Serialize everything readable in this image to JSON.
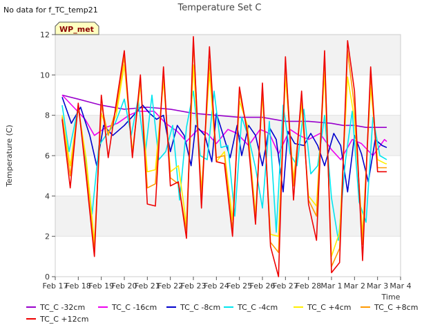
{
  "chart_data": {
    "type": "line",
    "title": "Temperature Set C",
    "no_data_note": "No data for f_TC_temp21",
    "badge": "WP_met",
    "xlabel": "Time",
    "ylabel": "Temperature (C)",
    "ylim": [
      0,
      12
    ],
    "yticks": [
      0,
      2,
      4,
      6,
      8,
      10,
      12
    ],
    "xlim": [
      0,
      15
    ],
    "xticks": [
      {
        "x": 0,
        "label": "Feb 17"
      },
      {
        "x": 1,
        "label": "Feb 18"
      },
      {
        "x": 2,
        "label": "Feb 19"
      },
      {
        "x": 3,
        "label": "Feb 20"
      },
      {
        "x": 4,
        "label": "Feb 21"
      },
      {
        "x": 5,
        "label": "Feb 22"
      },
      {
        "x": 6,
        "label": "Feb 23"
      },
      {
        "x": 7,
        "label": "Feb 24"
      },
      {
        "x": 8,
        "label": "Feb 25"
      },
      {
        "x": 9,
        "label": "Feb 26"
      },
      {
        "x": 10,
        "label": "Feb 27"
      },
      {
        "x": 11,
        "label": "Feb 28"
      },
      {
        "x": 12,
        "label": "Mar 1"
      },
      {
        "x": 13,
        "label": "Mar 2"
      },
      {
        "x": 14,
        "label": "Mar 3"
      },
      {
        "x": 15,
        "label": "Mar 4"
      }
    ],
    "grid": "horizontal bands",
    "legend_position": "bottom",
    "series": [
      {
        "name": "TC_C -32cm",
        "color": "#9900cc",
        "x": [
          0.3,
          1,
          2,
          3,
          4,
          5,
          6,
          7,
          8,
          9,
          10,
          11,
          12,
          12.5,
          13,
          13.5,
          14,
          14.4
        ],
        "y": [
          9.0,
          8.8,
          8.5,
          8.3,
          8.4,
          8.3,
          8.1,
          8.0,
          7.9,
          7.9,
          7.7,
          7.7,
          7.6,
          7.5,
          7.5,
          7.4,
          7.4,
          7.4
        ]
      },
      {
        "name": "TC_C -16cm",
        "color": "#ee00ee",
        "x": [
          0.3,
          0.8,
          1.3,
          1.7,
          2.2,
          2.7,
          3.2,
          3.6,
          4.3,
          4.8,
          5.3,
          5.7,
          6.2,
          6.6,
          7.0,
          7.5,
          7.9,
          8.4,
          8.9,
          9.3,
          9.7,
          10.2,
          10.6,
          11.0,
          11.5,
          12.0,
          12.4,
          12.9,
          13.3,
          13.8,
          14.3,
          14.4
        ],
        "y": [
          9.0,
          8.4,
          7.8,
          7.0,
          7.4,
          7.6,
          8.0,
          8.2,
          8.2,
          7.6,
          7.2,
          6.7,
          7.3,
          7.1,
          6.6,
          7.3,
          7.1,
          6.5,
          7.3,
          7.1,
          6.1,
          7.3,
          7.0,
          6.8,
          7.1,
          6.3,
          5.8,
          6.8,
          6.6,
          6.0,
          6.8,
          6.7
        ]
      },
      {
        "name": "TC_C -8cm",
        "color": "#0000cc",
        "x": [
          0.3,
          0.7,
          1.1,
          1.5,
          1.8,
          2.1,
          2.5,
          3.0,
          3.4,
          3.8,
          4.1,
          4.4,
          4.7,
          5.0,
          5.3,
          5.6,
          5.9,
          6.1,
          6.5,
          6.8,
          7.0,
          7.3,
          7.6,
          7.9,
          8.1,
          8.4,
          8.7,
          9.0,
          9.3,
          9.6,
          9.9,
          10.1,
          10.4,
          10.8,
          11.1,
          11.4,
          11.7,
          12.1,
          12.4,
          12.7,
          13.0,
          13.3,
          13.6,
          13.9,
          14.2,
          14.4
        ],
        "y": [
          8.9,
          7.6,
          8.4,
          7.0,
          5.5,
          7.5,
          7.0,
          7.5,
          8.0,
          8.5,
          8.1,
          7.8,
          8.0,
          6.2,
          7.5,
          7.0,
          5.5,
          7.5,
          7.0,
          5.7,
          8.1,
          7.0,
          5.9,
          7.5,
          6.0,
          7.5,
          7.0,
          5.5,
          7.4,
          6.8,
          4.2,
          7.2,
          6.6,
          6.5,
          7.1,
          6.5,
          5.5,
          7.1,
          6.5,
          4.2,
          7.0,
          6.1,
          4.7,
          6.8,
          6.5,
          6.4
        ]
      },
      {
        "name": "TC_C -4cm",
        "color": "#00e5ee",
        "x": [
          0.3,
          0.6,
          1.0,
          1.3,
          1.6,
          1.9,
          2.2,
          2.6,
          3.0,
          3.3,
          3.6,
          3.9,
          4.2,
          4.5,
          4.8,
          5.1,
          5.4,
          5.7,
          6.0,
          6.3,
          6.6,
          6.9,
          7.2,
          7.5,
          7.8,
          8.1,
          8.4,
          8.7,
          9.0,
          9.3,
          9.6,
          9.9,
          10.2,
          10.5,
          10.8,
          11.1,
          11.4,
          11.7,
          12.0,
          12.3,
          12.6,
          12.9,
          13.2,
          13.5,
          13.8,
          14.1,
          14.4
        ],
        "y": [
          8.5,
          6.2,
          8.4,
          6.0,
          3.1,
          6.5,
          7.0,
          7.6,
          8.8,
          7.0,
          8.8,
          6.0,
          9.0,
          5.8,
          6.2,
          7.5,
          3.8,
          7.4,
          9.2,
          6.0,
          5.8,
          9.2,
          6.4,
          6.5,
          3.0,
          7.9,
          6.9,
          5.4,
          3.4,
          7.7,
          2.2,
          8.5,
          6.1,
          5.5,
          8.3,
          5.1,
          5.5,
          8.0,
          3.9,
          1.8,
          5.7,
          8.2,
          3.7,
          2.7,
          7.9,
          6.0,
          5.8
        ]
      },
      {
        "name": "TC_C +4cm",
        "color": "#ffee00",
        "x": [
          0.3,
          0.65,
          1.0,
          1.35,
          1.7,
          2.0,
          2.3,
          2.65,
          3.0,
          3.35,
          3.7,
          4.0,
          4.35,
          4.7,
          5.0,
          5.35,
          5.7,
          6.0,
          6.35,
          6.7,
          7.0,
          7.35,
          7.7,
          8.0,
          8.35,
          8.7,
          9.0,
          9.35,
          9.7,
          10.0,
          10.35,
          10.7,
          11.0,
          11.35,
          11.7,
          12.0,
          12.35,
          12.7,
          13.0,
          13.35,
          13.7,
          14.0,
          14.35,
          14.4
        ],
        "y": [
          8.0,
          5.5,
          8.4,
          5.8,
          1.7,
          8.1,
          7.1,
          8.0,
          10.5,
          6.2,
          9.5,
          5.2,
          5.3,
          9.7,
          5.2,
          5.5,
          2.6,
          10.5,
          4.3,
          10.1,
          5.7,
          6.2,
          2.8,
          8.7,
          7.5,
          3.1,
          9.0,
          2.1,
          2.0,
          9.9,
          4.8,
          8.5,
          4.0,
          3.5,
          10.1,
          1.0,
          2.2,
          9.9,
          7.8,
          2.1,
          9.4,
          5.8,
          5.6,
          5.6
        ]
      },
      {
        "name": "TC_C +8cm",
        "color": "#ff9900",
        "x": [
          0.3,
          0.65,
          1.0,
          1.35,
          1.7,
          2.0,
          2.3,
          2.65,
          3.0,
          3.35,
          3.7,
          4.0,
          4.35,
          4.7,
          5.0,
          5.35,
          5.7,
          6.0,
          6.35,
          6.7,
          7.0,
          7.35,
          7.7,
          8.0,
          8.35,
          8.7,
          9.0,
          9.35,
          9.7,
          10.0,
          10.35,
          10.7,
          11.0,
          11.35,
          11.7,
          12.0,
          12.35,
          12.7,
          13.0,
          13.35,
          13.7,
          14.0,
          14.35,
          14.4
        ],
        "y": [
          7.9,
          5.0,
          8.5,
          5.2,
          1.3,
          8.5,
          7.0,
          8.3,
          10.9,
          6.0,
          9.8,
          4.4,
          4.6,
          10.1,
          4.9,
          4.6,
          2.3,
          11.6,
          4.0,
          10.7,
          5.9,
          6.0,
          2.3,
          9.1,
          7.3,
          2.8,
          9.3,
          1.7,
          1.2,
          10.6,
          4.5,
          8.9,
          3.8,
          3.0,
          10.9,
          0.5,
          1.4,
          11.2,
          8.4,
          1.6,
          10.0,
          5.4,
          5.4,
          5.4
        ]
      },
      {
        "name": "TC_C +12cm",
        "color": "#ee0000",
        "x": [
          0.3,
          0.65,
          1.0,
          1.35,
          1.7,
          2.0,
          2.3,
          2.65,
          3.0,
          3.35,
          3.7,
          4.0,
          4.35,
          4.7,
          5.0,
          5.35,
          5.7,
          6.0,
          6.35,
          6.7,
          7.0,
          7.35,
          7.7,
          8.0,
          8.35,
          8.7,
          9.0,
          9.35,
          9.7,
          10.0,
          10.35,
          10.7,
          11.0,
          11.35,
          11.7,
          12.0,
          12.35,
          12.7,
          13.0,
          13.35,
          13.7,
          14.0,
          14.35,
          14.4
        ],
        "y": [
          7.8,
          4.4,
          8.6,
          4.9,
          1.0,
          9.0,
          5.9,
          8.6,
          11.2,
          5.9,
          10.0,
          3.6,
          3.5,
          10.4,
          4.5,
          4.7,
          1.9,
          11.9,
          3.4,
          11.4,
          5.7,
          5.6,
          2.0,
          9.4,
          7.1,
          2.6,
          9.6,
          1.5,
          0.0,
          10.9,
          3.8,
          9.2,
          3.6,
          1.8,
          11.2,
          0.2,
          0.7,
          11.7,
          9.2,
          0.8,
          10.4,
          5.2,
          5.2,
          5.2
        ]
      }
    ]
  }
}
